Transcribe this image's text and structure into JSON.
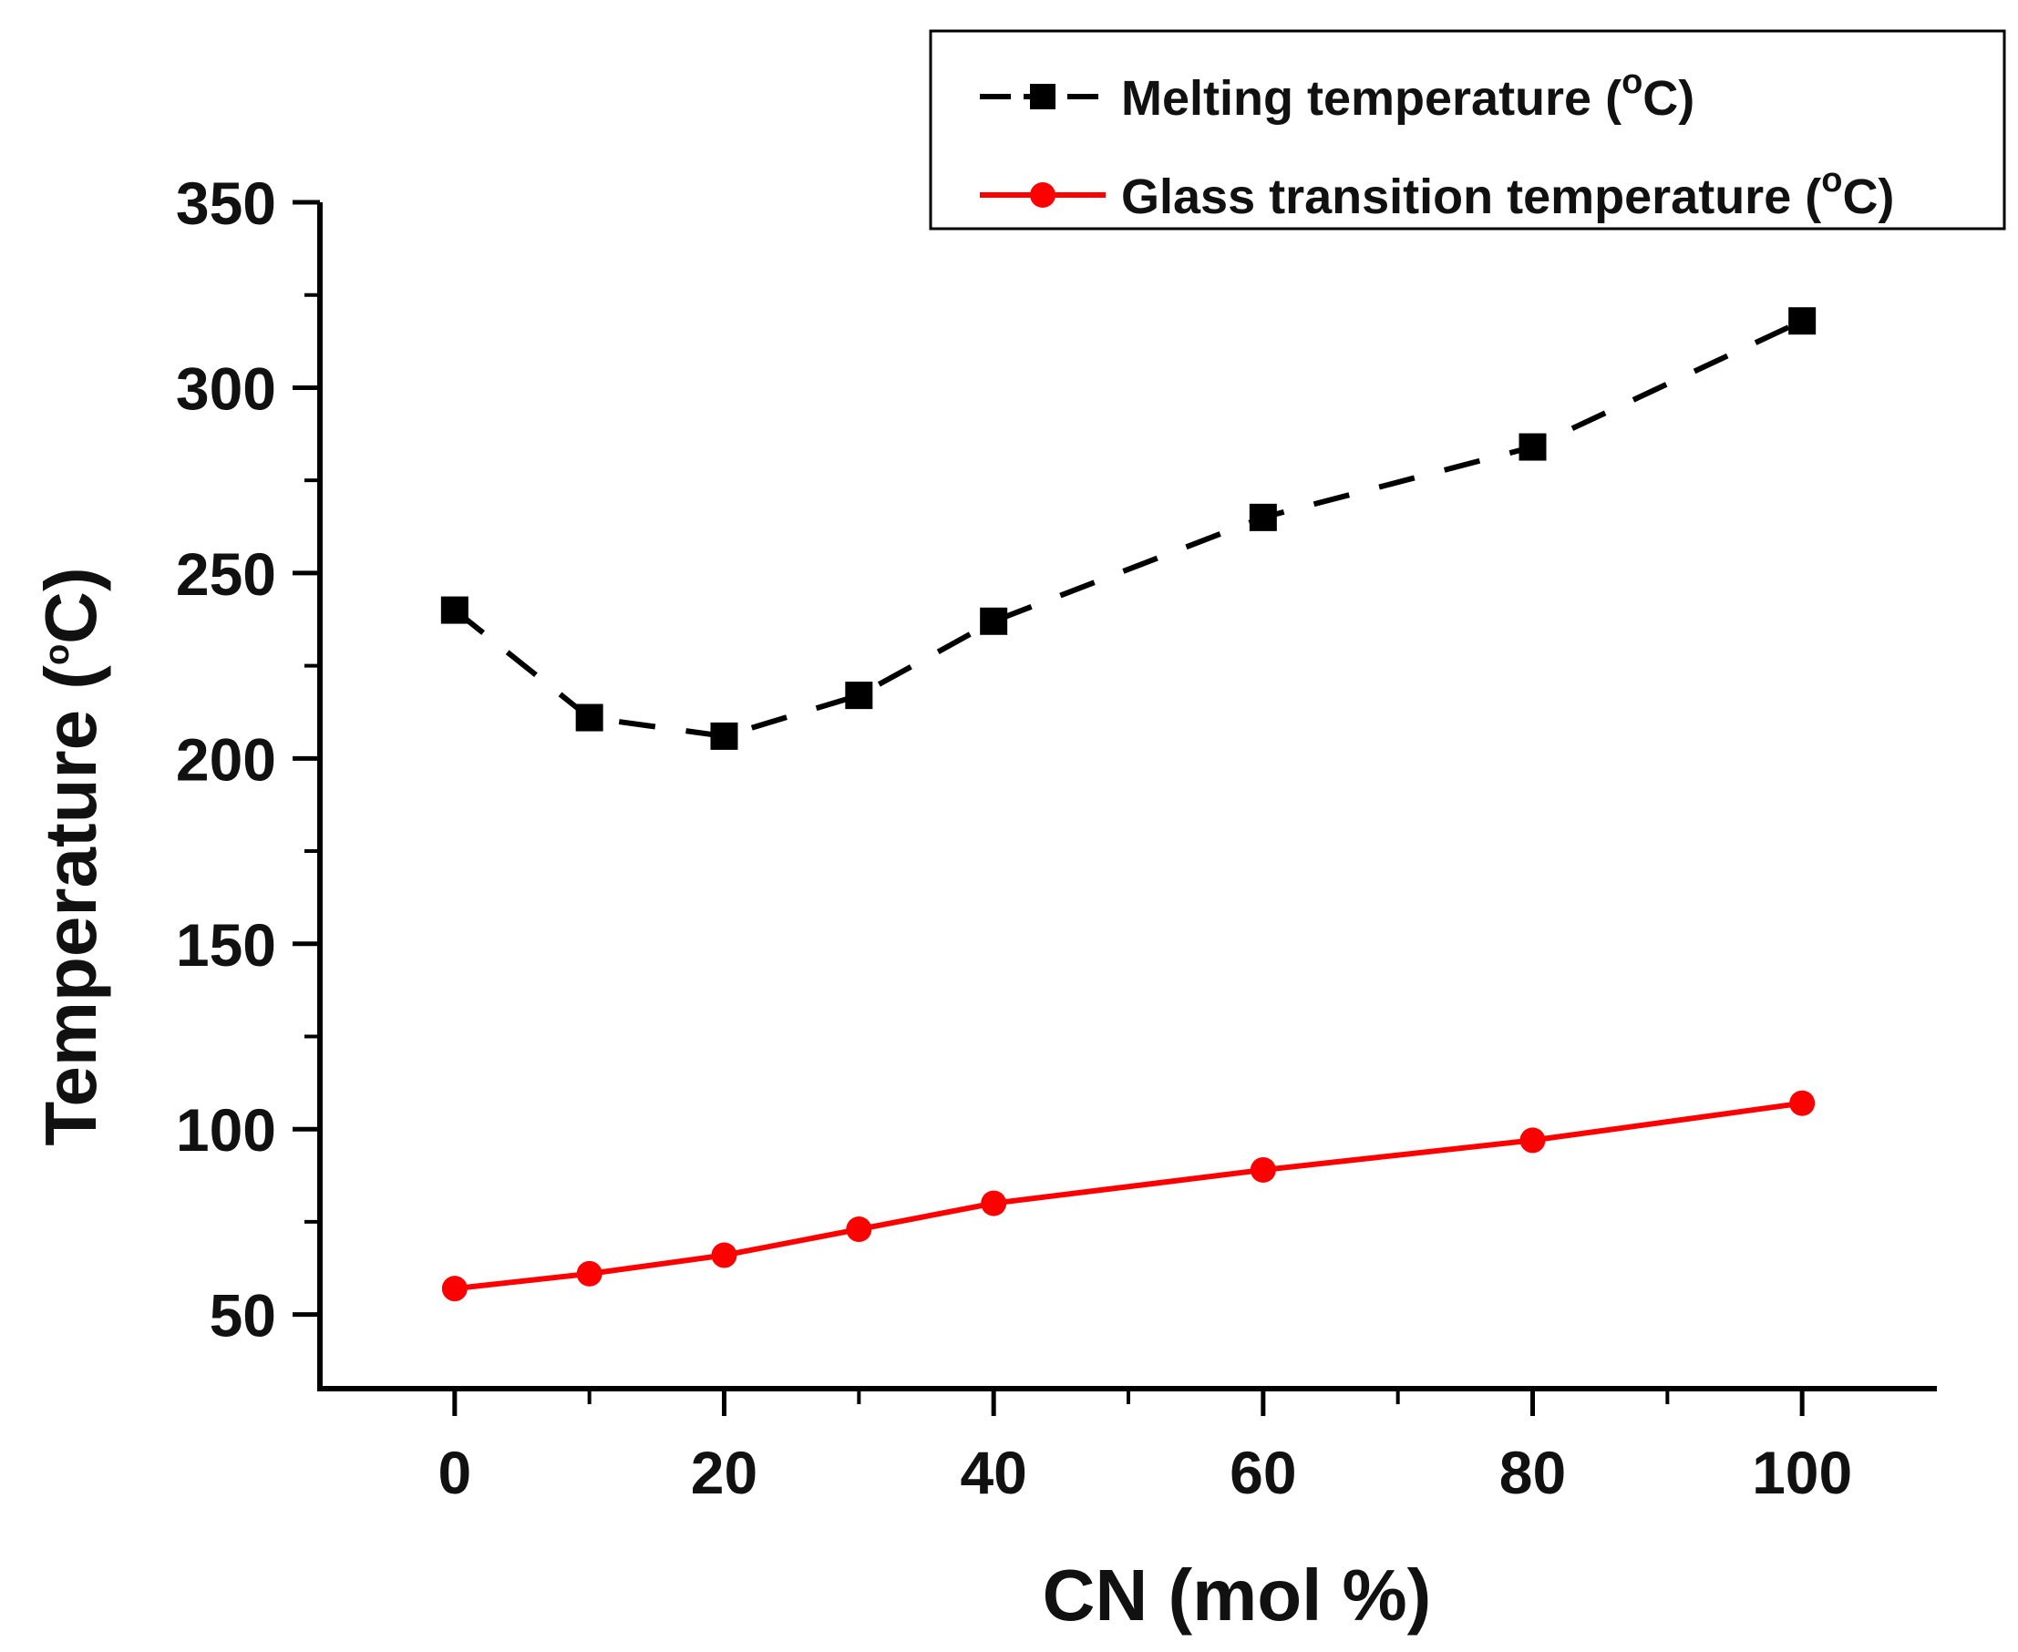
{
  "chart_data": {
    "type": "line",
    "xlabel": "CN (mol %)",
    "ylabel": {
      "base": "Temperature (",
      "sup": "o",
      "tail": "C)"
    },
    "xlim": [
      -10,
      110
    ],
    "ylim": [
      30,
      350
    ],
    "xticks": [
      0,
      20,
      40,
      60,
      80,
      100
    ],
    "xminor": [
      10,
      30,
      50,
      70,
      90
    ],
    "yticks": [
      50,
      100,
      150,
      200,
      250,
      300,
      350
    ],
    "yminor": [
      75,
      125,
      175,
      225,
      275,
      325
    ],
    "grid": false,
    "legend_position": "top-right",
    "series": [
      {
        "name": {
          "base": "Melting temperature (",
          "sup": "o",
          "tail": "C)"
        },
        "color": "#000000",
        "line_style": "dashed",
        "marker": "square",
        "x": [
          0,
          10,
          20,
          30,
          40,
          60,
          80,
          100
        ],
        "values": [
          240,
          211,
          206,
          217,
          237,
          265,
          284,
          318
        ]
      },
      {
        "name": {
          "base": "Glass transition temperature (",
          "sup": "o",
          "tail": "C)"
        },
        "color": "#ff0000",
        "line_style": "solid",
        "marker": "star",
        "x": [
          0,
          10,
          20,
          30,
          40,
          60,
          80,
          100
        ],
        "values": [
          57,
          61,
          66,
          73,
          80,
          89,
          97,
          107
        ]
      }
    ]
  }
}
